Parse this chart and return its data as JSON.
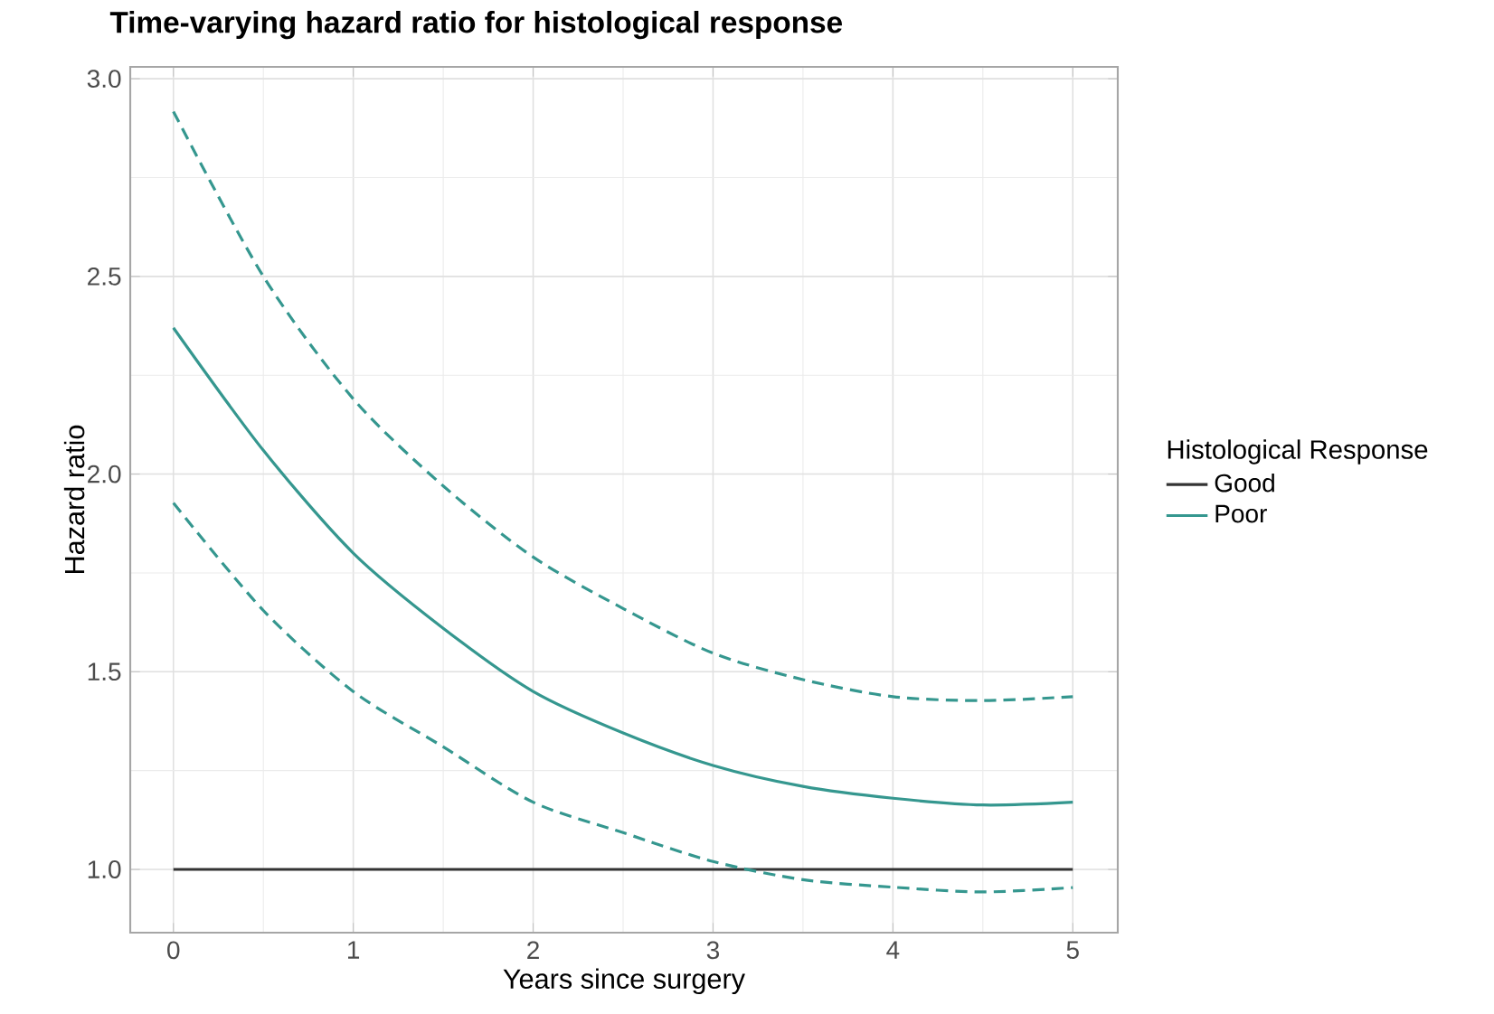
{
  "chart_data": {
    "type": "line",
    "title": "Time-varying hazard ratio for histological response",
    "xlabel": "Years since surgery",
    "ylabel": "Hazard ratio",
    "legend_title": "Histological Response",
    "x": [
      0,
      0.5,
      1,
      1.5,
      2,
      2.5,
      3,
      3.5,
      4,
      4.5,
      5
    ],
    "series": [
      {
        "name": "Good",
        "color": "#333333",
        "values": [
          1,
          1,
          1,
          1,
          1,
          1,
          1,
          1,
          1,
          1,
          1
        ]
      },
      {
        "name": "Poor",
        "color": "#35978f",
        "values": [
          2.37,
          2.06,
          1.8,
          1.61,
          1.45,
          1.345,
          1.263,
          1.21,
          1.18,
          1.163,
          1.17
        ]
      },
      {
        "color": "#35978f",
        "line_style": "dashed",
        "values": [
          2.917,
          2.5,
          2.19,
          1.97,
          1.79,
          1.66,
          1.547,
          1.48,
          1.437,
          1.427,
          1.437
        ]
      },
      {
        "color": "#35978f",
        "line_style": "dashed",
        "values": [
          1.927,
          1.655,
          1.45,
          1.31,
          1.17,
          1.093,
          1.02,
          0.974,
          0.955,
          0.943,
          0.954
        ]
      }
    ],
    "xlim": [
      -0.24,
      5.25
    ],
    "ylim": [
      0.84,
      3.03
    ],
    "xticks": [
      0,
      1,
      2,
      3,
      4,
      5
    ],
    "yticks": [
      {
        "value": 1,
        "label": "1.0"
      },
      {
        "value": 1.5,
        "label": "1.5"
      },
      {
        "value": 2,
        "label": "2.0"
      },
      {
        "value": 2.5,
        "label": "2.5"
      },
      {
        "value": 3,
        "label": "3.0"
      }
    ],
    "grid": true,
    "legend": "right",
    "line_style": "solid",
    "marker": "none"
  }
}
